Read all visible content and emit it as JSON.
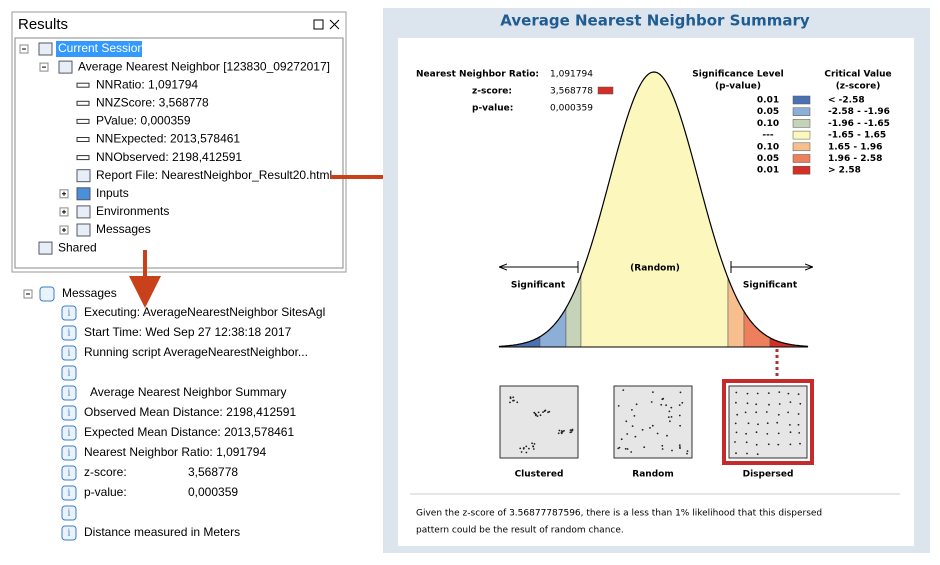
{
  "results_panel": {
    "title": "Results",
    "tree": [
      "Current Session",
      "Average Nearest Neighbor [123830_09272017]",
      "NNRatio: 1,091794",
      "NNZScore: 3,568778",
      "PValue: 0,000359",
      "NNExpected: 2013,578461",
      "NNObserved: 2198,412591",
      "Report File: NearestNeighbor_Result20.html",
      "Inputs",
      "Environments",
      "Messages",
      "Shared"
    ]
  },
  "messages_panel": {
    "header": "Messages",
    "lines": [
      "Executing: AverageNearestNeighbor SitesAgl",
      "Start Time: Wed Sep 27 12:38:18 2017",
      "Running script AverageNearestNeighbor...",
      "Average Nearest Neighbor Summary",
      "Observed Mean Distance:  2198,412591",
      "Expected Mean Distance:  2013,578461",
      "Nearest Neighbor Ratio:  1,091794",
      {
        "label": "z-score:",
        "value": "3,568778"
      },
      {
        "label": "p-value:",
        "value": "0,000359"
      },
      "Distance measured in Meters"
    ]
  },
  "report": {
    "title": "Average Nearest Neighbor Summary",
    "stats": [
      {
        "label": "Nearest Neighbor Ratio:",
        "value": "1,091794"
      },
      {
        "label": "z-score:",
        "value": "3,568778"
      },
      {
        "label": "p-value:",
        "value": "0,000359"
      }
    ],
    "legend": {
      "header_left": [
        "Significance Level",
        "(p-value)"
      ],
      "header_right": [
        "Critical Value",
        "(z-score)"
      ],
      "rows": [
        {
          "p": "0.01",
          "z": "< -2.58",
          "color": "#4a72b2"
        },
        {
          "p": "0.05",
          "z": "-2.58 - -1.96",
          "color": "#8daed6"
        },
        {
          "p": "0.10",
          "z": "-1.96 - -1.65",
          "color": "#c6d3b8"
        },
        {
          "p": "---",
          "z": "-1.65 - 1.65",
          "color": "#fbf7bd"
        },
        {
          "p": "0.10",
          "z": "1.65 - 1.96",
          "color": "#f7bf8e"
        },
        {
          "p": "0.05",
          "z": "1.96 - 2.58",
          "color": "#ee7f5c"
        },
        {
          "p": "0.01",
          "z": "> 2.58",
          "color": "#d42f27"
        }
      ]
    },
    "labels": {
      "left": "Significant",
      "middle": "(Random)",
      "right": "Significant"
    },
    "patterns": [
      "Clustered",
      "Random",
      "Dispersed"
    ],
    "footer": [
      "Given the z-score of 3.56877787596, there is a less than 1% likelihood that this dispersed",
      "pattern could be the result of random chance."
    ]
  }
}
